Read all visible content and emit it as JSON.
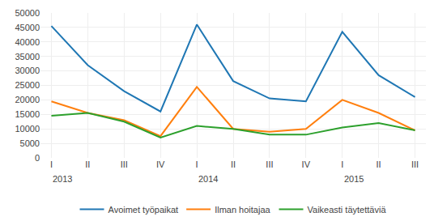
{
  "chart_data": {
    "type": "line",
    "categories": [
      "I",
      "II",
      "III",
      "IV",
      "I",
      "II",
      "III",
      "IV",
      "I",
      "II",
      "III"
    ],
    "series": [
      {
        "name": "Avoimet työpaikat",
        "values": [
          45500,
          32000,
          23000,
          16000,
          46000,
          26500,
          20500,
          19500,
          43500,
          28500,
          21000
        ]
      },
      {
        "name": "Ilman hoitajaa",
        "values": [
          19500,
          15500,
          13000,
          7500,
          24500,
          10000,
          9000,
          10000,
          20000,
          15500,
          9500
        ]
      },
      {
        "name": "Vaikeasti täytettäviä",
        "values": [
          14500,
          15500,
          12500,
          7000,
          11000,
          10000,
          8000,
          8000,
          10500,
          12000,
          9500
        ]
      }
    ],
    "ylim": [
      0,
      50000
    ],
    "yticks": [
      0,
      5000,
      10000,
      15000,
      20000,
      25000,
      30000,
      35000,
      40000,
      45000,
      50000
    ],
    "grid": true,
    "legend": "bottom",
    "annotations": [
      {
        "text": "2013",
        "x": 0
      },
      {
        "text": "2014",
        "x": 4
      },
      {
        "text": "2015",
        "x": 8
      }
    ]
  }
}
